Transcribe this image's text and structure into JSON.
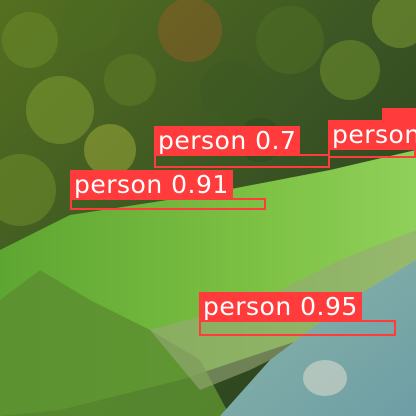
{
  "detections": [
    {
      "label": "person",
      "confidence": "0.7",
      "color": "#ff3b3b"
    },
    {
      "label": "person",
      "confidence": "0.91",
      "color": "#ff3b3b"
    },
    {
      "label": "person",
      "confidence": "0.95",
      "color": "#ff3b3b"
    },
    {
      "label": "person",
      "confidence": "",
      "color": "#ff3b3b"
    },
    {
      "label": "",
      "confidence": "",
      "color": "#ff3b3b"
    }
  ],
  "colors": {
    "forest": "#2f4a1e",
    "meadow": "#7fbf3f",
    "water": "#7aa6a6",
    "box": "#ff3b3b"
  }
}
